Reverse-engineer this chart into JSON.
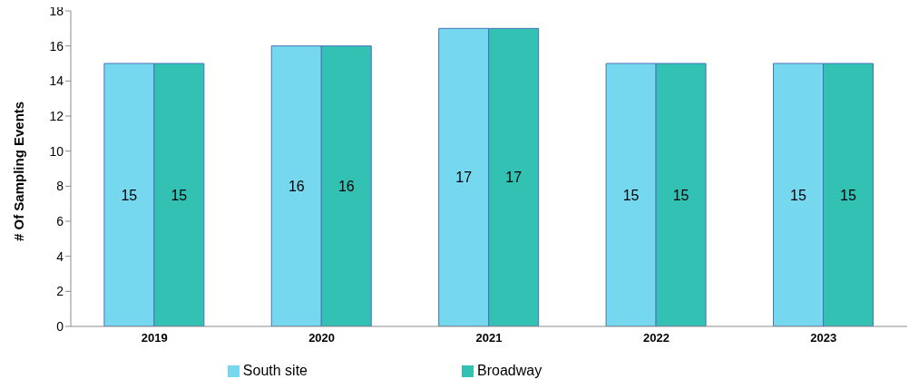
{
  "chart_data": {
    "type": "bar",
    "ylabel": "# Of Sampling Events",
    "categories": [
      "2019",
      "2020",
      "2021",
      "2022",
      "2023"
    ],
    "series": [
      {
        "name": "South site",
        "color": "#75d8ee",
        "values": [
          15,
          16,
          17,
          15,
          15
        ]
      },
      {
        "name": "Broadway",
        "color": "#33c1b4",
        "values": [
          15,
          16,
          17,
          15,
          15
        ]
      }
    ],
    "ylim": [
      0,
      18
    ],
    "yticks": [
      0,
      2,
      4,
      6,
      8,
      10,
      12,
      14,
      16,
      18
    ],
    "grid": false,
    "legend": "bottom",
    "data_labels": true
  }
}
